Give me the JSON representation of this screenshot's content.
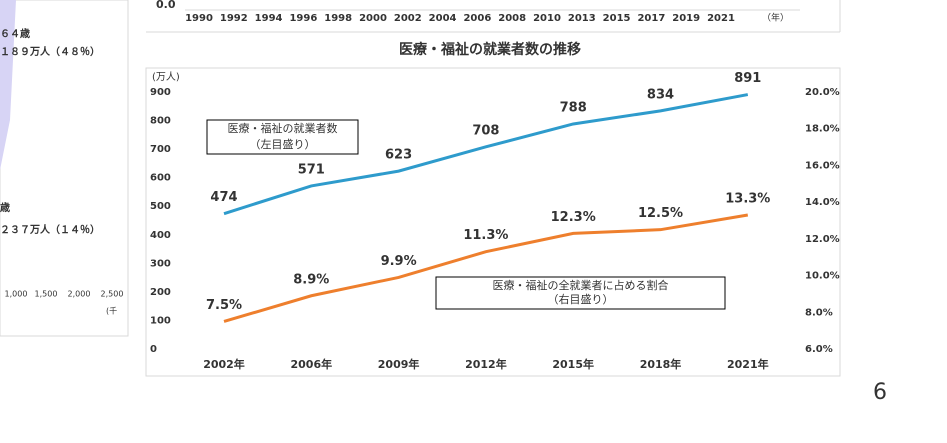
{
  "chart_data": {
    "type": "line",
    "title": "医療・福祉の就業者数の推移",
    "y_label": "(万人)",
    "categories": [
      "2002年",
      "2006年",
      "2009年",
      "2012年",
      "2015年",
      "2018年",
      "2021年"
    ],
    "series": [
      {
        "name": "医療・福祉の就業者数",
        "note": "（左目盛り）",
        "color": "#2e9bcc",
        "values": [
          474,
          571,
          623,
          708,
          788,
          834,
          891
        ]
      },
      {
        "name": "医療・福祉の全就業者に占める割合",
        "note": "（右目盛り）",
        "color": "#ee7f2d",
        "axis": "y2",
        "values": [
          7.5,
          8.9,
          9.9,
          11.3,
          12.3,
          12.5,
          13.3
        ],
        "value_labels": [
          "7.5%",
          "8.9%",
          "9.9%",
          "11.3%",
          "12.3%",
          "12.5%",
          "13.3%"
        ]
      }
    ],
    "ylim": [
      0,
      900
    ],
    "yticks": [
      0,
      100,
      200,
      300,
      400,
      500,
      600,
      700,
      800,
      900
    ],
    "y2lim": [
      6,
      20
    ],
    "y2ticks": [
      {
        "value": 6,
        "label": "6.0%"
      },
      {
        "value": 8,
        "label": "8.0%"
      },
      {
        "value": 10,
        "label": "10.0%"
      },
      {
        "value": 12,
        "label": "12.0%"
      },
      {
        "value": 14,
        "label": "14.0%"
      },
      {
        "value": 16,
        "label": "16.0%"
      },
      {
        "value": 18,
        "label": "18.0%"
      },
      {
        "value": 20,
        "label": "20.0%"
      }
    ],
    "grid": false
  },
  "top_fragment": {
    "zero_label": "0.0",
    "years": [
      "1990",
      "1992",
      "1994",
      "1996",
      "1998",
      "2000",
      "2002",
      "2004",
      "2006",
      "2008",
      "2010",
      "2013",
      "2015",
      "2017",
      "2019",
      "2021"
    ],
    "unit": "（年）"
  },
  "left_fragment": {
    "texts": [
      "６４歳",
      "１８９万人（４８％）",
      "歳",
      "２３７万人（１４％）"
    ],
    "ticks": [
      "1,000",
      "1,500",
      "2,000",
      "2,500"
    ],
    "unit": "(千"
  },
  "page_number": "6"
}
